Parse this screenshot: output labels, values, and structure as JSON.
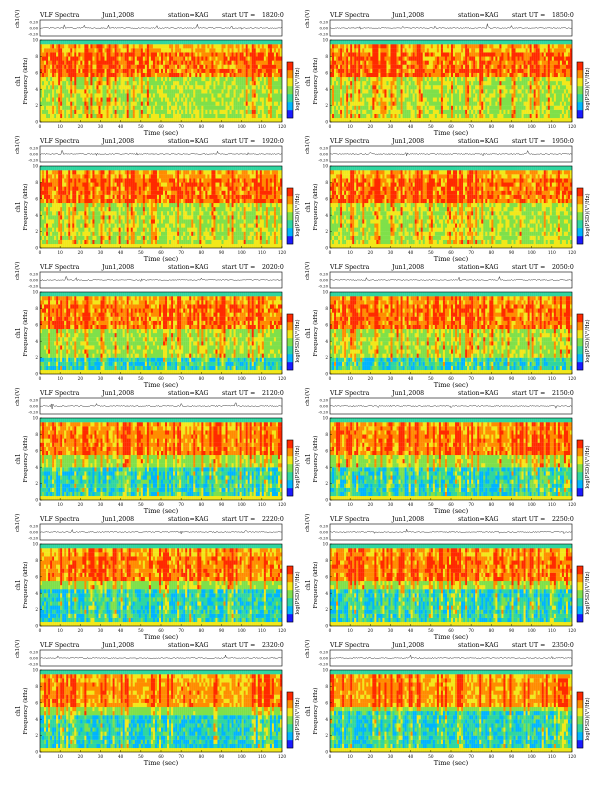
{
  "page": {
    "common": {
      "label": "VLF Spectra",
      "date": "Jun1,2008",
      "station": "station=KAG",
      "start_prefix": "start  UT =",
      "xlabel": "Time (sec)",
      "ylabel_line1": "ch1",
      "ylabel_line2": "Frequency (kHz)",
      "top_ylabel": "ch1(V)",
      "colorbar_label": "log(PSD)(V²/Hz)"
    }
  },
  "chart_data": [
    {
      "type": "heatmap",
      "panel": 1,
      "start_ut": "1820:0",
      "xlim": [
        0,
        120
      ],
      "ylim": [
        0,
        10
      ],
      "xticks": [
        0,
        10,
        20,
        30,
        40,
        50,
        60,
        70,
        80,
        90,
        100,
        110,
        120
      ],
      "yticks": [
        0,
        2,
        4,
        6,
        8,
        10
      ],
      "top_ylim": [
        -0.2,
        0.2
      ],
      "top_yticks": [
        "0.20",
        "0.00",
        "-0.20"
      ],
      "top_spikes": [
        {
          "t": 12,
          "a": 0.09
        },
        {
          "t": 22,
          "a": -0.12
        },
        {
          "t": 34,
          "a": 0.06
        },
        {
          "t": 58,
          "a": 0.07
        },
        {
          "t": 78,
          "a": 0.08
        },
        {
          "t": 95,
          "a": 0.05
        },
        {
          "t": 100,
          "a": 0.07
        }
      ],
      "intensity": 1.0,
      "quiet_band_top": 0.0
    },
    {
      "type": "heatmap",
      "panel": 2,
      "start_ut": "1850:0",
      "xlim": [
        0,
        120
      ],
      "ylim": [
        0,
        10
      ],
      "xticks": [
        0,
        10,
        20,
        30,
        40,
        50,
        60,
        70,
        80,
        90,
        100,
        110,
        120
      ],
      "yticks": [
        0,
        2,
        4,
        6,
        8,
        10
      ],
      "top_ylim": [
        -0.2,
        0.2
      ],
      "top_yticks": [
        "0.20",
        "0.00",
        "-0.20"
      ],
      "top_spikes": [
        {
          "t": 15,
          "a": 0.06
        },
        {
          "t": 36,
          "a": 0.05
        },
        {
          "t": 52,
          "a": 0.06
        },
        {
          "t": 78,
          "a": 0.1
        },
        {
          "t": 90,
          "a": 0.07
        }
      ],
      "intensity": 1.0,
      "quiet_band_top": 0.0
    },
    {
      "type": "heatmap",
      "panel": 3,
      "start_ut": "1920:0",
      "xlim": [
        0,
        120
      ],
      "ylim": [
        0,
        10
      ],
      "xticks": [
        0,
        10,
        20,
        30,
        40,
        50,
        60,
        70,
        80,
        90,
        100,
        110,
        120
      ],
      "yticks": [
        0,
        2,
        4,
        6,
        8,
        10
      ],
      "top_ylim": [
        -0.2,
        0.2
      ],
      "top_yticks": [
        "0.20",
        "0.00",
        "-0.20"
      ],
      "top_spikes": [
        {
          "t": 11,
          "a": 0.14
        },
        {
          "t": 28,
          "a": 0.06
        },
        {
          "t": 48,
          "a": -0.07
        },
        {
          "t": 88,
          "a": 0.06
        },
        {
          "t": 103,
          "a": 0.05
        }
      ],
      "intensity": 0.95,
      "quiet_band_top": 0.5
    },
    {
      "type": "heatmap",
      "panel": 4,
      "start_ut": "1950:0",
      "xlim": [
        0,
        120
      ],
      "ylim": [
        0,
        10
      ],
      "xticks": [
        0,
        10,
        20,
        30,
        40,
        50,
        60,
        70,
        80,
        90,
        100,
        110,
        120
      ],
      "yticks": [
        0,
        2,
        4,
        6,
        8,
        10
      ],
      "top_ylim": [
        -0.2,
        0.2
      ],
      "top_yticks": [
        "0.20",
        "0.00",
        "-0.20"
      ],
      "top_spikes": [
        {
          "t": 20,
          "a": 0.05
        },
        {
          "t": 38,
          "a": 0.08
        },
        {
          "t": 76,
          "a": -0.05
        },
        {
          "t": 98,
          "a": 0.09
        }
      ],
      "intensity": 0.95,
      "quiet_band_top": 0.5
    },
    {
      "type": "heatmap",
      "panel": 5,
      "start_ut": "2020:0",
      "xlim": [
        0,
        120
      ],
      "ylim": [
        0,
        10
      ],
      "xticks": [
        0,
        10,
        20,
        30,
        40,
        50,
        60,
        70,
        80,
        90,
        100,
        110,
        120
      ],
      "yticks": [
        0,
        2,
        4,
        6,
        8,
        10
      ],
      "top_ylim": [
        -0.2,
        0.2
      ],
      "top_yticks": [
        "0.20",
        "0.00",
        "-0.20"
      ],
      "top_spikes": [
        {
          "t": 13,
          "a": 0.11
        },
        {
          "t": 18,
          "a": 0.07
        },
        {
          "t": 50,
          "a": 0.06
        },
        {
          "t": 80,
          "a": 0.06
        }
      ],
      "intensity": 0.85,
      "quiet_band_top": 2.0
    },
    {
      "type": "heatmap",
      "panel": 6,
      "start_ut": "2050:0",
      "xlim": [
        0,
        120
      ],
      "ylim": [
        0,
        10
      ],
      "xticks": [
        0,
        10,
        20,
        30,
        40,
        50,
        60,
        70,
        80,
        90,
        100,
        110,
        120
      ],
      "yticks": [
        0,
        2,
        4,
        6,
        8,
        10
      ],
      "top_ylim": [
        -0.2,
        0.2
      ],
      "top_yticks": [
        "0.20",
        "0.00",
        "-0.20"
      ],
      "top_spikes": [
        {
          "t": 18,
          "a": 0.05
        },
        {
          "t": 64,
          "a": 0.06
        },
        {
          "t": 84,
          "a": 0.08
        }
      ],
      "intensity": 0.85,
      "quiet_band_top": 2.0
    },
    {
      "type": "heatmap",
      "panel": 7,
      "start_ut": "2120:0",
      "xlim": [
        0,
        120
      ],
      "ylim": [
        0,
        10
      ],
      "xticks": [
        0,
        10,
        20,
        30,
        40,
        50,
        60,
        70,
        80,
        90,
        100,
        110,
        120
      ],
      "yticks": [
        0,
        2,
        4,
        6,
        8,
        10
      ],
      "top_ylim": [
        -0.2,
        0.2
      ],
      "top_yticks": [
        "0.20",
        "0.00",
        "-0.20"
      ],
      "top_spikes": [
        {
          "t": 6,
          "a": 0.12
        },
        {
          "t": 28,
          "a": 0.05
        },
        {
          "t": 70,
          "a": 0.05
        },
        {
          "t": 97,
          "a": 0.1
        }
      ],
      "intensity": 0.7,
      "quiet_band_top": 4.0
    },
    {
      "type": "heatmap",
      "panel": 8,
      "start_ut": "2150:0",
      "xlim": [
        0,
        120
      ],
      "ylim": [
        0,
        10
      ],
      "xticks": [
        0,
        10,
        20,
        30,
        40,
        50,
        60,
        70,
        80,
        90,
        100,
        110,
        120
      ],
      "yticks": [
        0,
        2,
        4,
        6,
        8,
        10
      ],
      "top_ylim": [
        -0.2,
        0.2
      ],
      "top_yticks": [
        "0.20",
        "0.00",
        "-0.20"
      ],
      "top_spikes": [
        {
          "t": 24,
          "a": 0.06
        },
        {
          "t": 60,
          "a": -0.05
        },
        {
          "t": 112,
          "a": 0.07
        }
      ],
      "intensity": 0.7,
      "quiet_band_top": 4.0
    },
    {
      "type": "heatmap",
      "panel": 9,
      "start_ut": "2220:0",
      "xlim": [
        0,
        120
      ],
      "ylim": [
        0,
        10
      ],
      "xticks": [
        0,
        10,
        20,
        30,
        40,
        50,
        60,
        70,
        80,
        90,
        100,
        110,
        120
      ],
      "yticks": [
        0,
        2,
        4,
        6,
        8,
        10
      ],
      "top_ylim": [
        -0.2,
        0.2
      ],
      "top_yticks": [
        "0.20",
        "0.00",
        "-0.20"
      ],
      "top_spikes": [
        {
          "t": 16,
          "a": 0.05
        },
        {
          "t": 70,
          "a": 0.06
        },
        {
          "t": 102,
          "a": 0.05
        }
      ],
      "intensity": 0.75,
      "quiet_band_top": 4.5
    },
    {
      "type": "heatmap",
      "panel": 10,
      "start_ut": "2250:0",
      "xlim": [
        0,
        120
      ],
      "ylim": [
        0,
        10
      ],
      "xticks": [
        0,
        10,
        20,
        30,
        40,
        50,
        60,
        70,
        80,
        90,
        100,
        110,
        120
      ],
      "yticks": [
        0,
        2,
        4,
        6,
        8,
        10
      ],
      "top_ylim": [
        -0.2,
        0.2
      ],
      "top_yticks": [
        "0.20",
        "0.00",
        "-0.20"
      ],
      "top_spikes": [
        {
          "t": 22,
          "a": 0.05
        },
        {
          "t": 38,
          "a": 0.06
        },
        {
          "t": 84,
          "a": 0.05
        },
        {
          "t": 116,
          "a": 0.07
        }
      ],
      "intensity": 0.75,
      "quiet_band_top": 4.5
    },
    {
      "type": "heatmap",
      "panel": 11,
      "start_ut": "2320:0",
      "xlim": [
        0,
        120
      ],
      "ylim": [
        0,
        10
      ],
      "xticks": [
        0,
        10,
        20,
        30,
        40,
        50,
        60,
        70,
        80,
        90,
        100,
        110,
        120
      ],
      "yticks": [
        0,
        2,
        4,
        6,
        8,
        10
      ],
      "top_ylim": [
        -0.2,
        0.2
      ],
      "top_yticks": [
        "0.20",
        "0.00",
        "-0.20"
      ],
      "top_spikes": [
        {
          "t": 9,
          "a": 0.06
        },
        {
          "t": 48,
          "a": 0.05
        },
        {
          "t": 92,
          "a": 0.06
        }
      ],
      "intensity": 0.65,
      "quiet_band_top": 4.5
    },
    {
      "type": "heatmap",
      "panel": 12,
      "start_ut": "2350:0",
      "xlim": [
        0,
        120
      ],
      "ylim": [
        0,
        10
      ],
      "xticks": [
        0,
        10,
        20,
        30,
        40,
        50,
        60,
        70,
        80,
        90,
        100,
        110,
        120
      ],
      "yticks": [
        0,
        2,
        4,
        6,
        8,
        10
      ],
      "top_ylim": [
        -0.2,
        0.2
      ],
      "top_yticks": [
        "0.20",
        "0.00",
        "-0.20"
      ],
      "top_spikes": [
        {
          "t": 40,
          "a": 0.06
        },
        {
          "t": 110,
          "a": 0.05
        }
      ],
      "intensity": 0.55,
      "quiet_band_top": 5.0
    }
  ],
  "colormap": [
    "#1a1aff",
    "#00b4ff",
    "#2fd6a0",
    "#7fe04a",
    "#f2e81a",
    "#ff8c00",
    "#ff2a00"
  ]
}
